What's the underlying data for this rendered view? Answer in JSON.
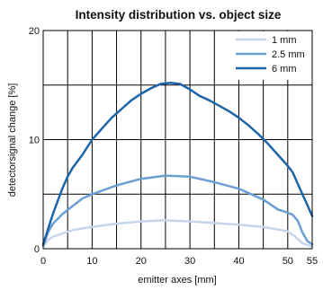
{
  "chart_data": {
    "type": "line",
    "title": "Intensity distribution vs. object size",
    "xlabel": "emitter axes [mm]",
    "ylabel": "detectorsignal change [%]",
    "xlim": [
      0,
      55
    ],
    "ylim": [
      0,
      20
    ],
    "xticks": [
      0,
      10,
      20,
      30,
      40,
      50,
      55
    ],
    "yticks": [
      0,
      10,
      20
    ],
    "grid": true,
    "legend_position": "top-right",
    "series": [
      {
        "name": "1 mm",
        "color": "#c5d6ea",
        "x": [
          0,
          1,
          2,
          4,
          6,
          10,
          15,
          20,
          25,
          30,
          35,
          40,
          45,
          50,
          51.5,
          53,
          55
        ],
        "y": [
          0.2,
          0.8,
          1.1,
          1.4,
          1.7,
          2.0,
          2.3,
          2.5,
          2.6,
          2.5,
          2.35,
          2.2,
          2.0,
          1.6,
          1.1,
          0.5,
          0.2
        ]
      },
      {
        "name": "2.5 mm",
        "color": "#6b9fd4",
        "x": [
          0,
          1,
          2,
          4,
          6,
          8,
          10,
          15,
          20,
          25,
          30,
          35,
          40,
          45,
          48,
          50,
          51,
          52,
          53,
          54,
          55
        ],
        "y": [
          0.3,
          1.5,
          2.3,
          3.2,
          3.9,
          4.6,
          5.0,
          5.8,
          6.4,
          6.7,
          6.6,
          6.1,
          5.5,
          4.5,
          3.6,
          3.3,
          3.1,
          2.6,
          1.5,
          0.7,
          0.4
        ]
      },
      {
        "name": "6 mm",
        "color": "#1e64a8",
        "x": [
          0,
          1,
          2,
          3,
          4,
          5,
          6,
          8,
          10,
          12,
          14,
          16,
          18,
          20,
          22,
          24,
          26,
          28,
          30,
          32,
          34,
          36,
          38,
          40,
          42,
          44,
          46,
          48,
          50,
          51,
          52,
          53,
          54,
          55
        ],
        "y": [
          0.4,
          1.8,
          3.2,
          4.4,
          5.6,
          6.6,
          7.4,
          8.6,
          10.0,
          11.0,
          12.0,
          12.8,
          13.6,
          14.2,
          14.7,
          15.1,
          15.2,
          15.1,
          14.6,
          14.0,
          13.6,
          13.1,
          12.6,
          12.0,
          11.3,
          10.5,
          9.6,
          8.6,
          7.6,
          7.0,
          6.0,
          5.0,
          4.0,
          3.0
        ]
      }
    ]
  }
}
